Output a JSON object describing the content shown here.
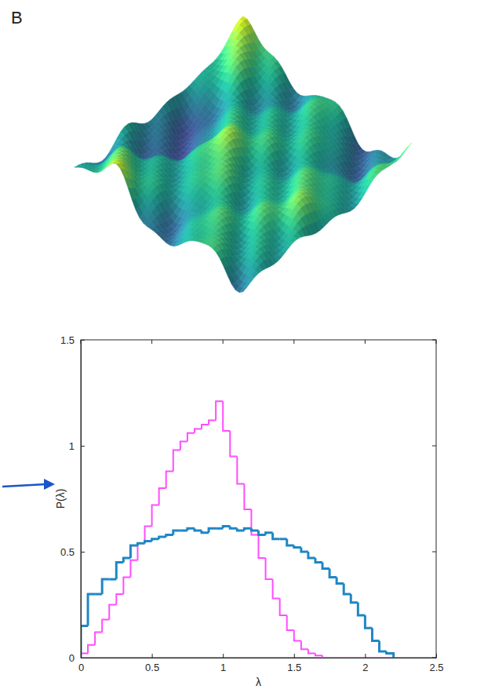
{
  "chart_data": {
    "type": "histogram",
    "annotations": [
      "B"
    ],
    "x_label": "λ",
    "y_label": "P(λ)",
    "bins": [
      0,
      0.05,
      0.1,
      0.15,
      0.2,
      0.25,
      0.3,
      0.35,
      0.4,
      0.45,
      0.5,
      0.55,
      0.6,
      0.65,
      0.7,
      0.75,
      0.8,
      0.85,
      0.9,
      0.95,
      1,
      1.05,
      1.1,
      1.15,
      1.2,
      1.25,
      1.3,
      1.35,
      1.4,
      1.45,
      1.5,
      1.55,
      1.6,
      1.65,
      1.7,
      1.75,
      1.8,
      1.85,
      1.9,
      1.95,
      2,
      2.05,
      2.1,
      2.15,
      2.2
    ],
    "series": [
      {
        "color": "#ff4dff",
        "values": [
          0.02,
          0.06,
          0.12,
          0.18,
          0.25,
          0.3,
          0.38,
          0.46,
          0.54,
          0.62,
          0.72,
          0.8,
          0.88,
          0.98,
          1.02,
          1.06,
          1.08,
          1.1,
          1.12,
          1.21,
          1.07,
          0.95,
          0.82,
          0.7,
          0.58,
          0.47,
          0.37,
          0.28,
          0.2,
          0.13,
          0.08,
          0.04,
          0.02,
          0.01,
          0,
          0,
          0,
          0,
          0,
          0,
          0,
          0,
          0,
          0
        ]
      },
      {
        "color": "#1f87c4",
        "values": [
          0.15,
          0.3,
          0.3,
          0.37,
          0.37,
          0.45,
          0.47,
          0.53,
          0.54,
          0.55,
          0.56,
          0.57,
          0.58,
          0.6,
          0.6,
          0.61,
          0.6,
          0.59,
          0.61,
          0.61,
          0.62,
          0.61,
          0.6,
          0.61,
          0.6,
          0.58,
          0.59,
          0.56,
          0.56,
          0.53,
          0.52,
          0.5,
          0.47,
          0.45,
          0.42,
          0.38,
          0.35,
          0.3,
          0.26,
          0.2,
          0.14,
          0.08,
          0.03,
          0.02
        ]
      }
    ],
    "xlim": [
      0,
      2.5
    ],
    "ylim": [
      0,
      1.5
    ],
    "xticks": [
      0,
      0.5,
      1,
      1.5,
      2,
      2.5
    ],
    "yticks": [
      0,
      0.5,
      1,
      1.5
    ]
  }
}
